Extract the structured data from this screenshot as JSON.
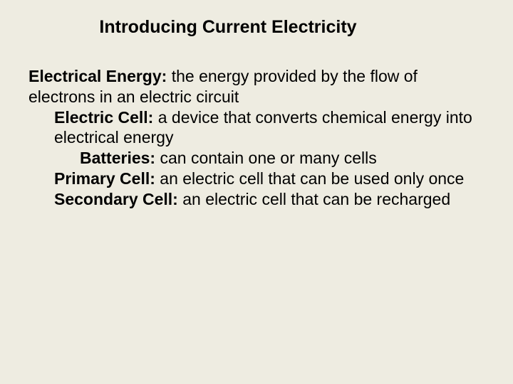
{
  "title": "Introducing Current Electricity",
  "definitions": [
    {
      "level": 0,
      "term": "Electrical Energy:",
      "def": " the energy provided by the flow of electrons in an electric circuit"
    },
    {
      "level": 1,
      "term": "Electric Cell:",
      "def": " a device that converts chemical energy into electrical energy"
    },
    {
      "level": 2,
      "term": "Batteries:",
      "def": " can contain one or many cells"
    },
    {
      "level": 1,
      "term": "Primary Cell:",
      "def": " an electric cell that can be used only once"
    },
    {
      "level": 1,
      "term": "Secondary Cell:",
      "def": " an electric cell that can be recharged"
    }
  ],
  "colors": {
    "background": "#eeece1",
    "text": "#000000"
  },
  "typography": {
    "title_fontsize": 25,
    "body_fontsize": 23,
    "font_family": "Arial"
  }
}
